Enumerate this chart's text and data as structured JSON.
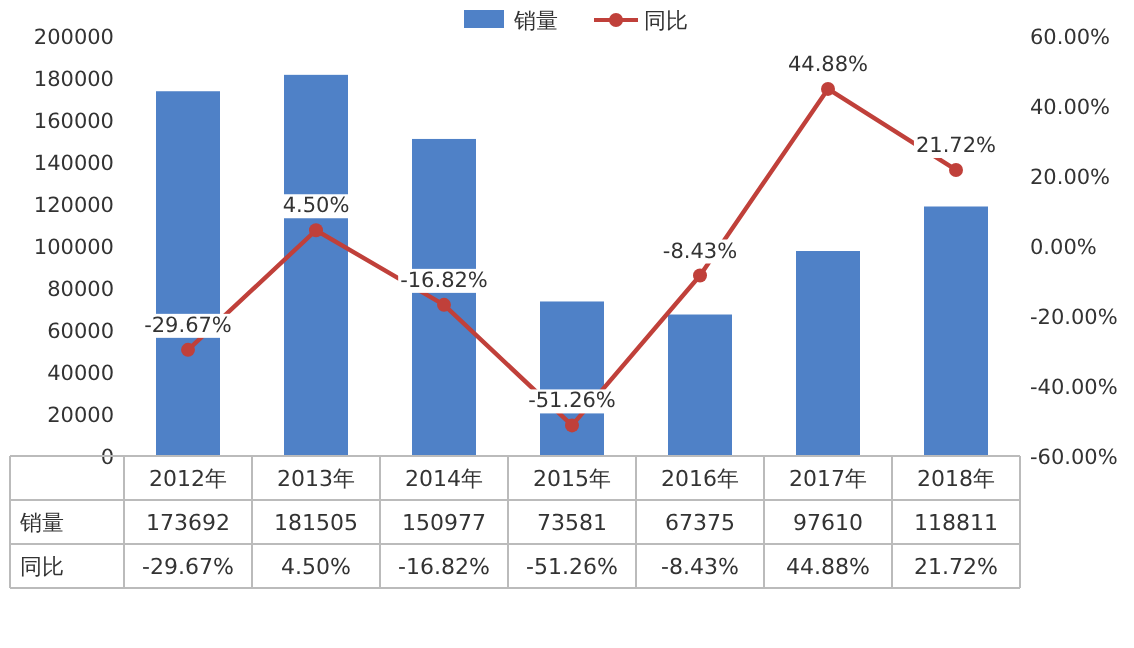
{
  "chart_data": {
    "type": "bar",
    "categories": [
      "2012年",
      "2013年",
      "2014年",
      "2015年",
      "2016年",
      "2017年",
      "2018年"
    ],
    "series": [
      {
        "name": "销量",
        "color": "#4f81c7",
        "values": [
          173692,
          181505,
          150977,
          73581,
          67375,
          97610,
          118811
        ],
        "value_labels": [
          "173692",
          "181505",
          "150977",
          "73581",
          "67375",
          "97610",
          "118811"
        ]
      },
      {
        "name": "同比",
        "type": "line",
        "axis": "y2",
        "color": "#c0403a",
        "marker": "circle",
        "values": [
          -29.67,
          4.5,
          -16.82,
          -51.26,
          -8.43,
          44.88,
          21.72
        ],
        "value_labels": [
          "-29.67%",
          "4.50%",
          "-16.82%",
          "-51.26%",
          "-8.43%",
          "44.88%",
          "21.72%"
        ]
      }
    ],
    "ylim": [
      0,
      200000
    ],
    "yticks": [
      0,
      20000,
      40000,
      60000,
      80000,
      100000,
      120000,
      140000,
      160000,
      180000,
      200000
    ],
    "y2lim": [
      -60,
      60
    ],
    "y2ticks": [
      {
        "value": -60,
        "label": "-60.00%"
      },
      {
        "value": -40,
        "label": "-40.00%"
      },
      {
        "value": -20,
        "label": "-20.00%"
      },
      {
        "value": 0,
        "label": "0.00%"
      },
      {
        "value": 20,
        "label": "20.00%"
      },
      {
        "value": 40,
        "label": "40.00%"
      },
      {
        "value": 60,
        "label": "60.00%"
      }
    ],
    "legend": "top",
    "grid": false
  }
}
